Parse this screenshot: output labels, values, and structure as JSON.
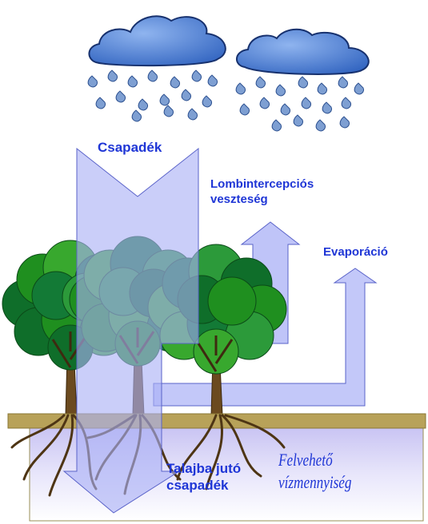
{
  "labels": {
    "precipitation": "Csapadék",
    "interception_line1": "Lombintercepciós",
    "interception_line2": "veszteség",
    "evaporation": "Evaporáció",
    "soil_line1": "Talajba jutó",
    "soil_line2": "csapadék",
    "available_water": "Felvehető vízmennyiség"
  },
  "icons": {
    "cloud": "rain-cloud-icon",
    "tree": "tree-icon",
    "drop": "raindrop-icon"
  },
  "colors": {
    "arrow_fill": "#a9b0f6",
    "arrow_stroke": "#5a63c9",
    "label_text": "#1f36d6",
    "cloud_fill": "#4f82d6",
    "drop": "#7e9fd2",
    "ground": "#b8a259",
    "tree_green": "#1f8f1f",
    "trunk": "#6b4a1f"
  }
}
